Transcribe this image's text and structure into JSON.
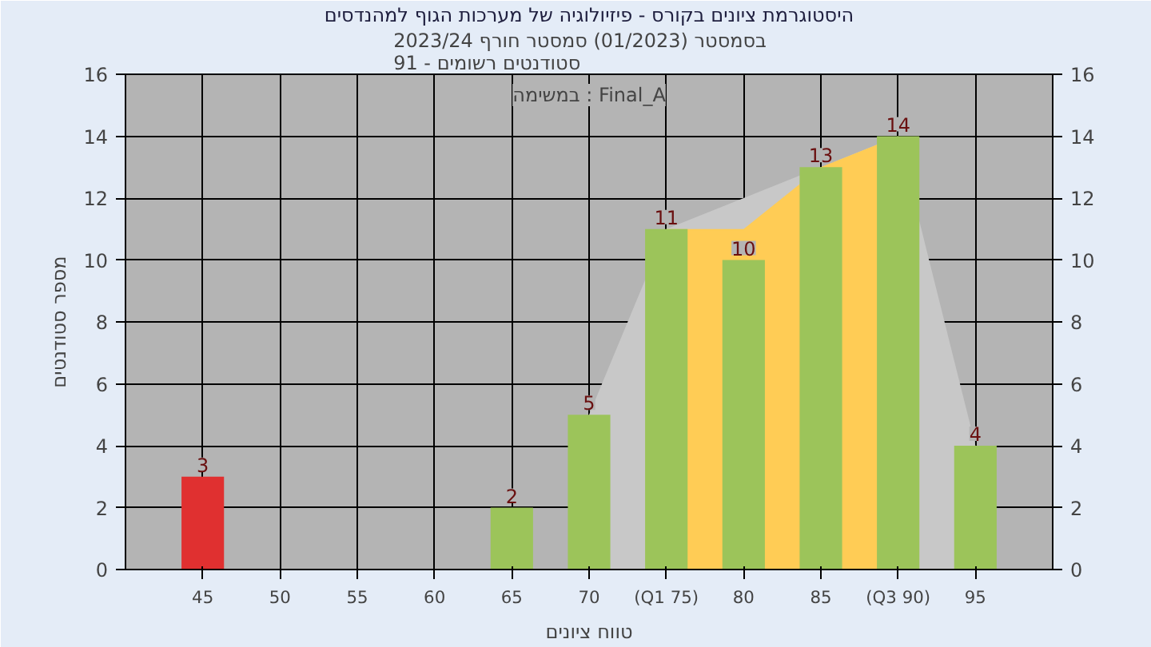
{
  "chart_data": {
    "type": "bar",
    "title": "היסטוגרמת ציונים בקורס - פיזיולוגיה של מערכות הגוף למהנדסים",
    "subtitle": "בסמסטר  (01/2023)  סמסטר חורף  2023/24\nסטודנטים רשומים - 91",
    "xlabel": "טווח ציונים",
    "ylabel": "מספר סטודנטים",
    "annotations": [
      "במשימה : Final_A"
    ],
    "categories": [
      "45",
      "50",
      "55",
      "60",
      "65",
      "70",
      "(Q1 75)",
      "80",
      "85",
      "(Q3 90)",
      "95"
    ],
    "series": [
      {
        "type": "area",
        "color": "#c8c8c8",
        "values": [
          null,
          null,
          null,
          null,
          null,
          5,
          11,
          null,
          null,
          14,
          4
        ]
      },
      {
        "type": "area",
        "color": "#ffcc55",
        "values": [
          null,
          null,
          null,
          null,
          null,
          null,
          11,
          11,
          13,
          14,
          null
        ]
      },
      {
        "colors": [
          "#e03030",
          "#9cc45a",
          "#9cc45a",
          "#9cc45a",
          "#9cc45a",
          "#9cc45a",
          "#9cc45a",
          "#9cc45a",
          "#9cc45a",
          "#9cc45a",
          "#9cc45a"
        ],
        "values": [
          3,
          0,
          0,
          0,
          2,
          5,
          11,
          10,
          13,
          14,
          4
        ],
        "value_labels": [
          "3",
          null,
          null,
          null,
          "2",
          "5",
          "11",
          "10",
          "13",
          "14",
          "4"
        ]
      }
    ],
    "ylim": [
      0,
      16
    ],
    "yticks": [
      0,
      2,
      4,
      6,
      8,
      10,
      12,
      14,
      16
    ],
    "y2lim": [
      0,
      16
    ],
    "y2ticks": [
      0,
      2,
      4,
      6,
      8,
      10,
      12,
      14,
      16
    ],
    "grid": true
  }
}
